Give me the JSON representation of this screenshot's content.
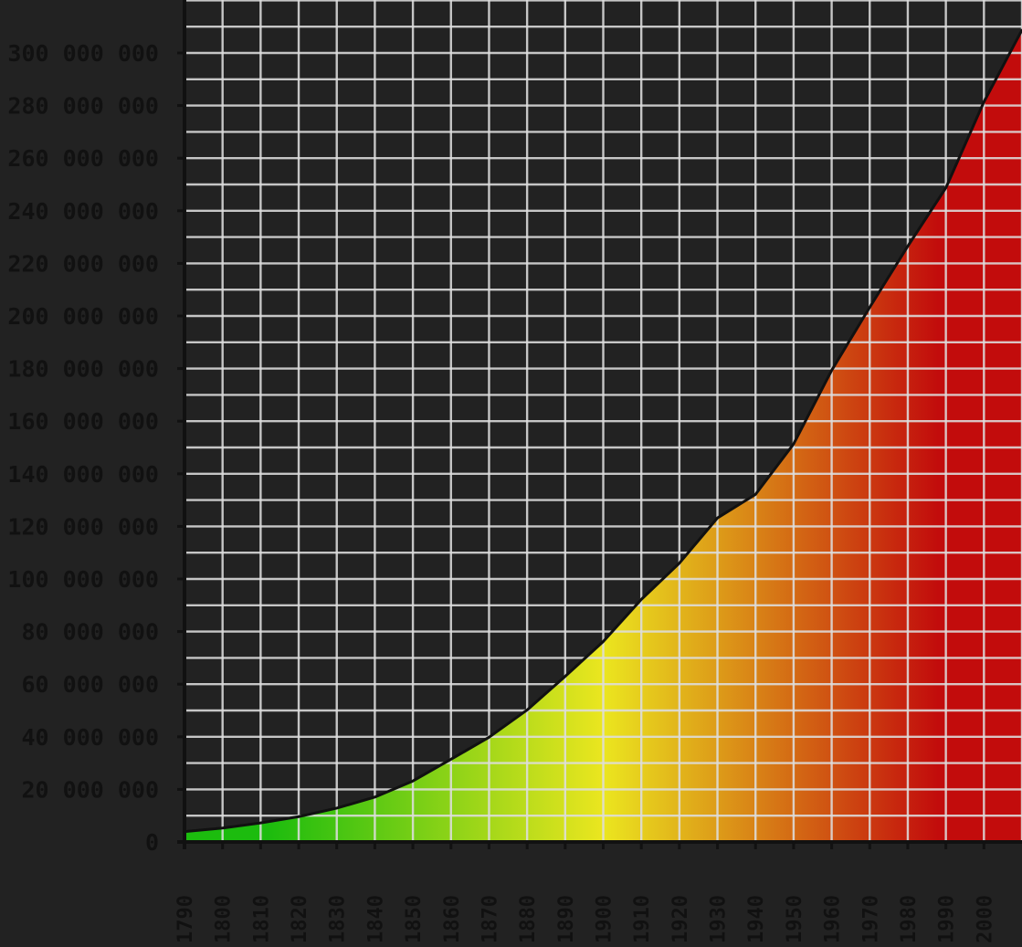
{
  "chart_data": {
    "type": "area",
    "title": "",
    "xlabel": "",
    "ylabel": "",
    "x": [
      1790,
      1800,
      1810,
      1820,
      1830,
      1840,
      1850,
      1860,
      1870,
      1880,
      1890,
      1900,
      1910,
      1920,
      1930,
      1940,
      1950,
      1960,
      1970,
      1980,
      1990,
      2000,
      2010
    ],
    "series": [
      {
        "name": "",
        "values": [
          3929214,
          5308483,
          7239881,
          9638453,
          12860702,
          17063353,
          23191876,
          31443321,
          39818449,
          50189209,
          62979766,
          76212168,
          92228496,
          106021537,
          123202624,
          132164569,
          151325798,
          179323175,
          203302031,
          226542199,
          248709873,
          281421906,
          308745538
        ]
      }
    ],
    "x_tick_labels": [
      "1790",
      "1800",
      "1810",
      "1820",
      "1830",
      "1840",
      "1850",
      "1860",
      "1870",
      "1880",
      "1890",
      "1900",
      "1910",
      "1920",
      "1930",
      "1940",
      "1950",
      "1960",
      "1970",
      "1980",
      "1990",
      "2000"
    ],
    "y_tick_labels": [
      "0",
      "20 000 000",
      "40 000 000",
      "60 000 000",
      "80 000 000",
      "100 000 000",
      "120 000 000",
      "140 000 000",
      "160 000 000",
      "180 000 000",
      "200 000 000",
      "220 000 000",
      "240 000 000",
      "260 000 000",
      "280 000 000",
      "300 000 000"
    ],
    "xlim": [
      1790,
      2010
    ],
    "ylim": [
      0,
      320000000
    ],
    "grid": true,
    "colors": {
      "background": "#222222",
      "grid": "#dddddd",
      "line": "#111111",
      "axis_text": "#111111",
      "gradient_start": "#1cbc0e",
      "gradient_mid": "#ebe61f",
      "gradient_end": "#c20c0c"
    }
  }
}
